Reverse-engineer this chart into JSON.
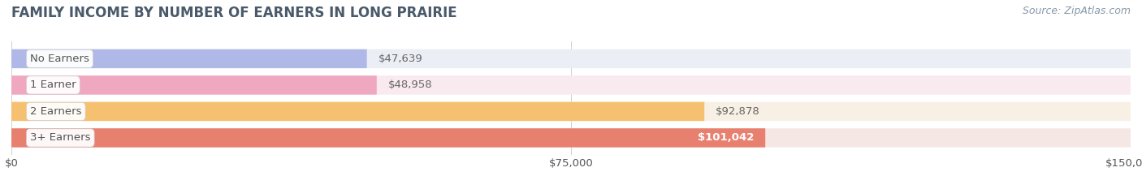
{
  "title": "FAMILY INCOME BY NUMBER OF EARNERS IN LONG PRAIRIE",
  "source": "Source: ZipAtlas.com",
  "categories": [
    "No Earners",
    "1 Earner",
    "2 Earners",
    "3+ Earners"
  ],
  "values": [
    47639,
    48958,
    92878,
    101042
  ],
  "labels": [
    "$47,639",
    "$48,958",
    "$92,878",
    "$101,042"
  ],
  "bar_colors": [
    "#b0b8e8",
    "#f0a8c0",
    "#f5c070",
    "#e88070"
  ],
  "bar_bg_colors": [
    "#eceef6",
    "#f8eaee",
    "#f8f0e4",
    "#f5e8e4"
  ],
  "xlim": [
    0,
    150000
  ],
  "xtick_labels": [
    "$0",
    "$75,000",
    "$150,000"
  ],
  "title_color": "#4a5a6a",
  "cat_label_color": "#555555",
  "source_color": "#8898a8",
  "value_label_color_inside": "#ffffff",
  "value_label_color_outside": "#666666",
  "background_color": "#ffffff",
  "bar_height": 0.72,
  "title_fontsize": 12,
  "label_fontsize": 9.5,
  "value_fontsize": 9.5,
  "source_fontsize": 9
}
